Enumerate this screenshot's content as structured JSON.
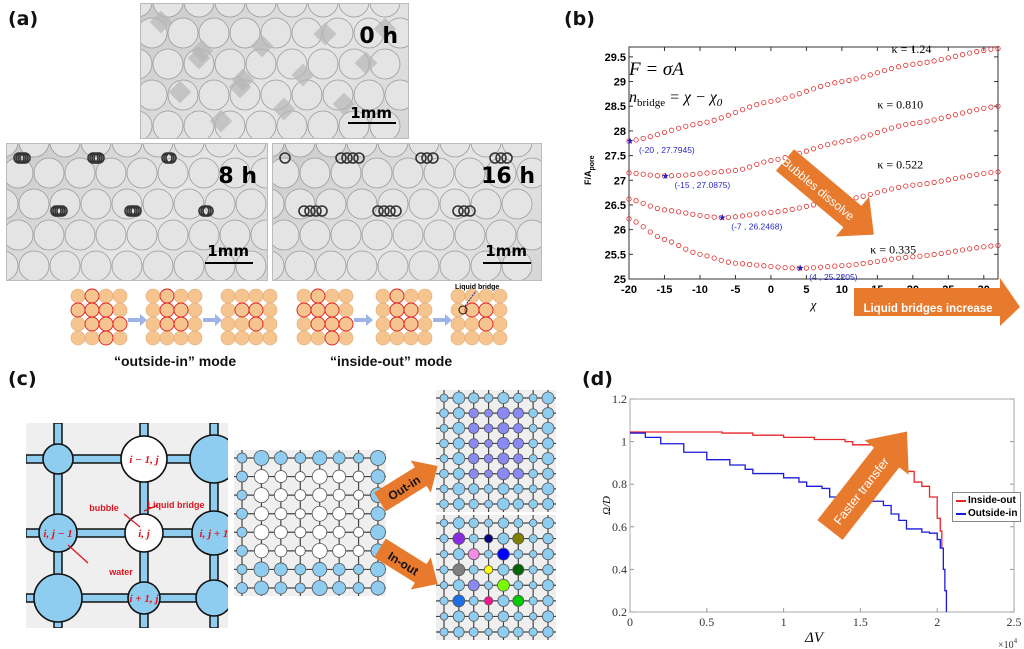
{
  "panels": {
    "a": {
      "label": "(a)",
      "images": [
        {
          "time": "0 h",
          "scale": "1mm"
        },
        {
          "time": "8 h",
          "scale": "1mm"
        },
        {
          "time": "16 h",
          "scale": "1mm"
        }
      ],
      "schematic": {
        "liquid_bridge_label": "Liquid bridge",
        "modes": [
          "“outside-in” mode",
          "“inside-out” mode"
        ]
      }
    },
    "b": {
      "label": "(b)"
    },
    "c": {
      "label": "(c)",
      "cell_labels": {
        "top": "i − 1, j",
        "left": "i, j − 1",
        "center": "i, j",
        "right": "i, j + 1",
        "bottom": "i + 1, j"
      },
      "annotations": {
        "bubble": "bubble",
        "liquid_bridge": "Liquid bridge",
        "water": "water"
      },
      "arrows": {
        "out_in": "Out-in",
        "in_out": "In-out"
      },
      "colors": {
        "water": "#8ecdf0",
        "bubble": "#ffffff",
        "outin_fill": "#8a8af5",
        "arrow": "#e87a2e",
        "label_red": "#e0141e"
      },
      "inout_colors": [
        "#8a2be2",
        "#000080",
        "#808000",
        "#f58ce6",
        "#0000ff",
        "#808080",
        "#ffff00",
        "#006400",
        "#8a8af5",
        "#7cfc00",
        "#1e6ee6",
        "#ff1493",
        "#00cc00",
        "#8b0000",
        "#8b1a8b",
        "#ff8c00",
        "#000000"
      ]
    },
    "d": {
      "label": "(d)"
    }
  },
  "chart_data": [
    {
      "type": "scatter",
      "panel": "b",
      "ylabel": "F/A",
      "ylabel_sub": "pore",
      "xlabel": "χ",
      "xlim": [
        -20,
        32
      ],
      "ylim": [
        25,
        29.7
      ],
      "xticks": [
        -20,
        -15,
        -10,
        -5,
        0,
        5,
        10,
        15,
        20,
        25,
        30
      ],
      "yticks": [
        25,
        25.5,
        26,
        26.5,
        27,
        27.5,
        28,
        28.5,
        29,
        29.5
      ],
      "marker_color": "#e03030",
      "equations": [
        "F = σA",
        "n",
        "bridge",
        " = χ − χ",
        "0"
      ],
      "series": [
        {
          "name": "κ = 1.24",
          "points": [
            [
              -20,
              27.7945
            ],
            [
              -10,
              28.15
            ],
            [
              0,
              28.6
            ],
            [
              10,
              29.0
            ],
            [
              20,
              29.35
            ],
            [
              32,
              29.67
            ]
          ],
          "min": {
            "label": "(-20 , 27.7945)",
            "x": -20,
            "y": 27.7945
          }
        },
        {
          "name": "κ = 0.810",
          "points": [
            [
              -20,
              27.15
            ],
            [
              -15,
              27.0875
            ],
            [
              -5,
              27.2
            ],
            [
              0,
              27.4
            ],
            [
              10,
              27.78
            ],
            [
              20,
              28.15
            ],
            [
              32,
              28.5
            ]
          ],
          "min": {
            "label": "(-15 , 27.0875)",
            "x": -15,
            "y": 27.0875
          }
        },
        {
          "name": "κ = 0.522",
          "points": [
            [
              -20,
              26.62
            ],
            [
              -15,
              26.4
            ],
            [
              -7,
              26.2468
            ],
            [
              0,
              26.35
            ],
            [
              10,
              26.6
            ],
            [
              20,
              26.9
            ],
            [
              32,
              27.17
            ]
          ],
          "min": {
            "label": "(-7 , 26.2468)",
            "x": -7,
            "y": 26.2468
          }
        },
        {
          "name": "κ = 0.335",
          "points": [
            [
              -20,
              26.22
            ],
            [
              -15,
              25.8
            ],
            [
              -10,
              25.5
            ],
            [
              -5,
              25.32
            ],
            [
              4,
              25.2205
            ],
            [
              10,
              25.27
            ],
            [
              20,
              25.45
            ],
            [
              32,
              25.68
            ]
          ],
          "min": {
            "label": "(4 , 25.2205)",
            "x": 4,
            "y": 25.2205
          }
        }
      ],
      "annotations": {
        "bubbles": "Bubbles dissolve",
        "bridges": "Liquid bridges increase"
      }
    },
    {
      "type": "line",
      "panel": "d",
      "xlabel": "ΔV",
      "ylabel": "Ω/D",
      "x_multiplier": "×10",
      "x_multiplier_exp": "4",
      "xlim": [
        0,
        2.5
      ],
      "ylim": [
        0.2,
        1.2
      ],
      "xticks": [
        "0",
        "0.5",
        "1",
        "1.5",
        "2",
        "2.5"
      ],
      "yticks": [
        "0.2",
        "0.4",
        "0.6",
        "0.8",
        "1",
        "1.2"
      ],
      "legend_position": "right",
      "annotation": "Faster transfer",
      "series": [
        {
          "name": "Inside-out",
          "color": "#e8262a",
          "points": [
            [
              0,
              1.045
            ],
            [
              0.3,
              1.045
            ],
            [
              0.6,
              1.04
            ],
            [
              0.8,
              1.03
            ],
            [
              1.0,
              1.02
            ],
            [
              1.2,
              1.01
            ],
            [
              1.4,
              1.0
            ],
            [
              1.45,
              0.985
            ],
            [
              1.6,
              0.965
            ],
            [
              1.7,
              0.93
            ],
            [
              1.75,
              0.88
            ],
            [
              1.8,
              0.86
            ],
            [
              1.85,
              0.81
            ],
            [
              1.9,
              0.79
            ],
            [
              1.95,
              0.74
            ],
            [
              2.0,
              0.64
            ],
            [
              2.02,
              0.58
            ],
            [
              2.03,
              0.5
            ]
          ]
        },
        {
          "name": "Outside-in",
          "color": "#1a1ad8",
          "points": [
            [
              0,
              1.04
            ],
            [
              0.1,
              1.02
            ],
            [
              0.2,
              0.99
            ],
            [
              0.35,
              0.95
            ],
            [
              0.5,
              0.915
            ],
            [
              0.65,
              0.89
            ],
            [
              0.75,
              0.87
            ],
            [
              0.8,
              0.85
            ],
            [
              1.0,
              0.83
            ],
            [
              1.1,
              0.81
            ],
            [
              1.15,
              0.79
            ],
            [
              1.25,
              0.78
            ],
            [
              1.3,
              0.74
            ],
            [
              1.45,
              0.72
            ],
            [
              1.65,
              0.7
            ],
            [
              1.7,
              0.66
            ],
            [
              1.75,
              0.63
            ],
            [
              1.8,
              0.59
            ],
            [
              1.9,
              0.575
            ],
            [
              1.95,
              0.57
            ],
            [
              2.0,
              0.54
            ],
            [
              2.02,
              0.5
            ],
            [
              2.04,
              0.4
            ],
            [
              2.05,
              0.3
            ],
            [
              2.06,
              0.2
            ]
          ]
        }
      ]
    }
  ]
}
